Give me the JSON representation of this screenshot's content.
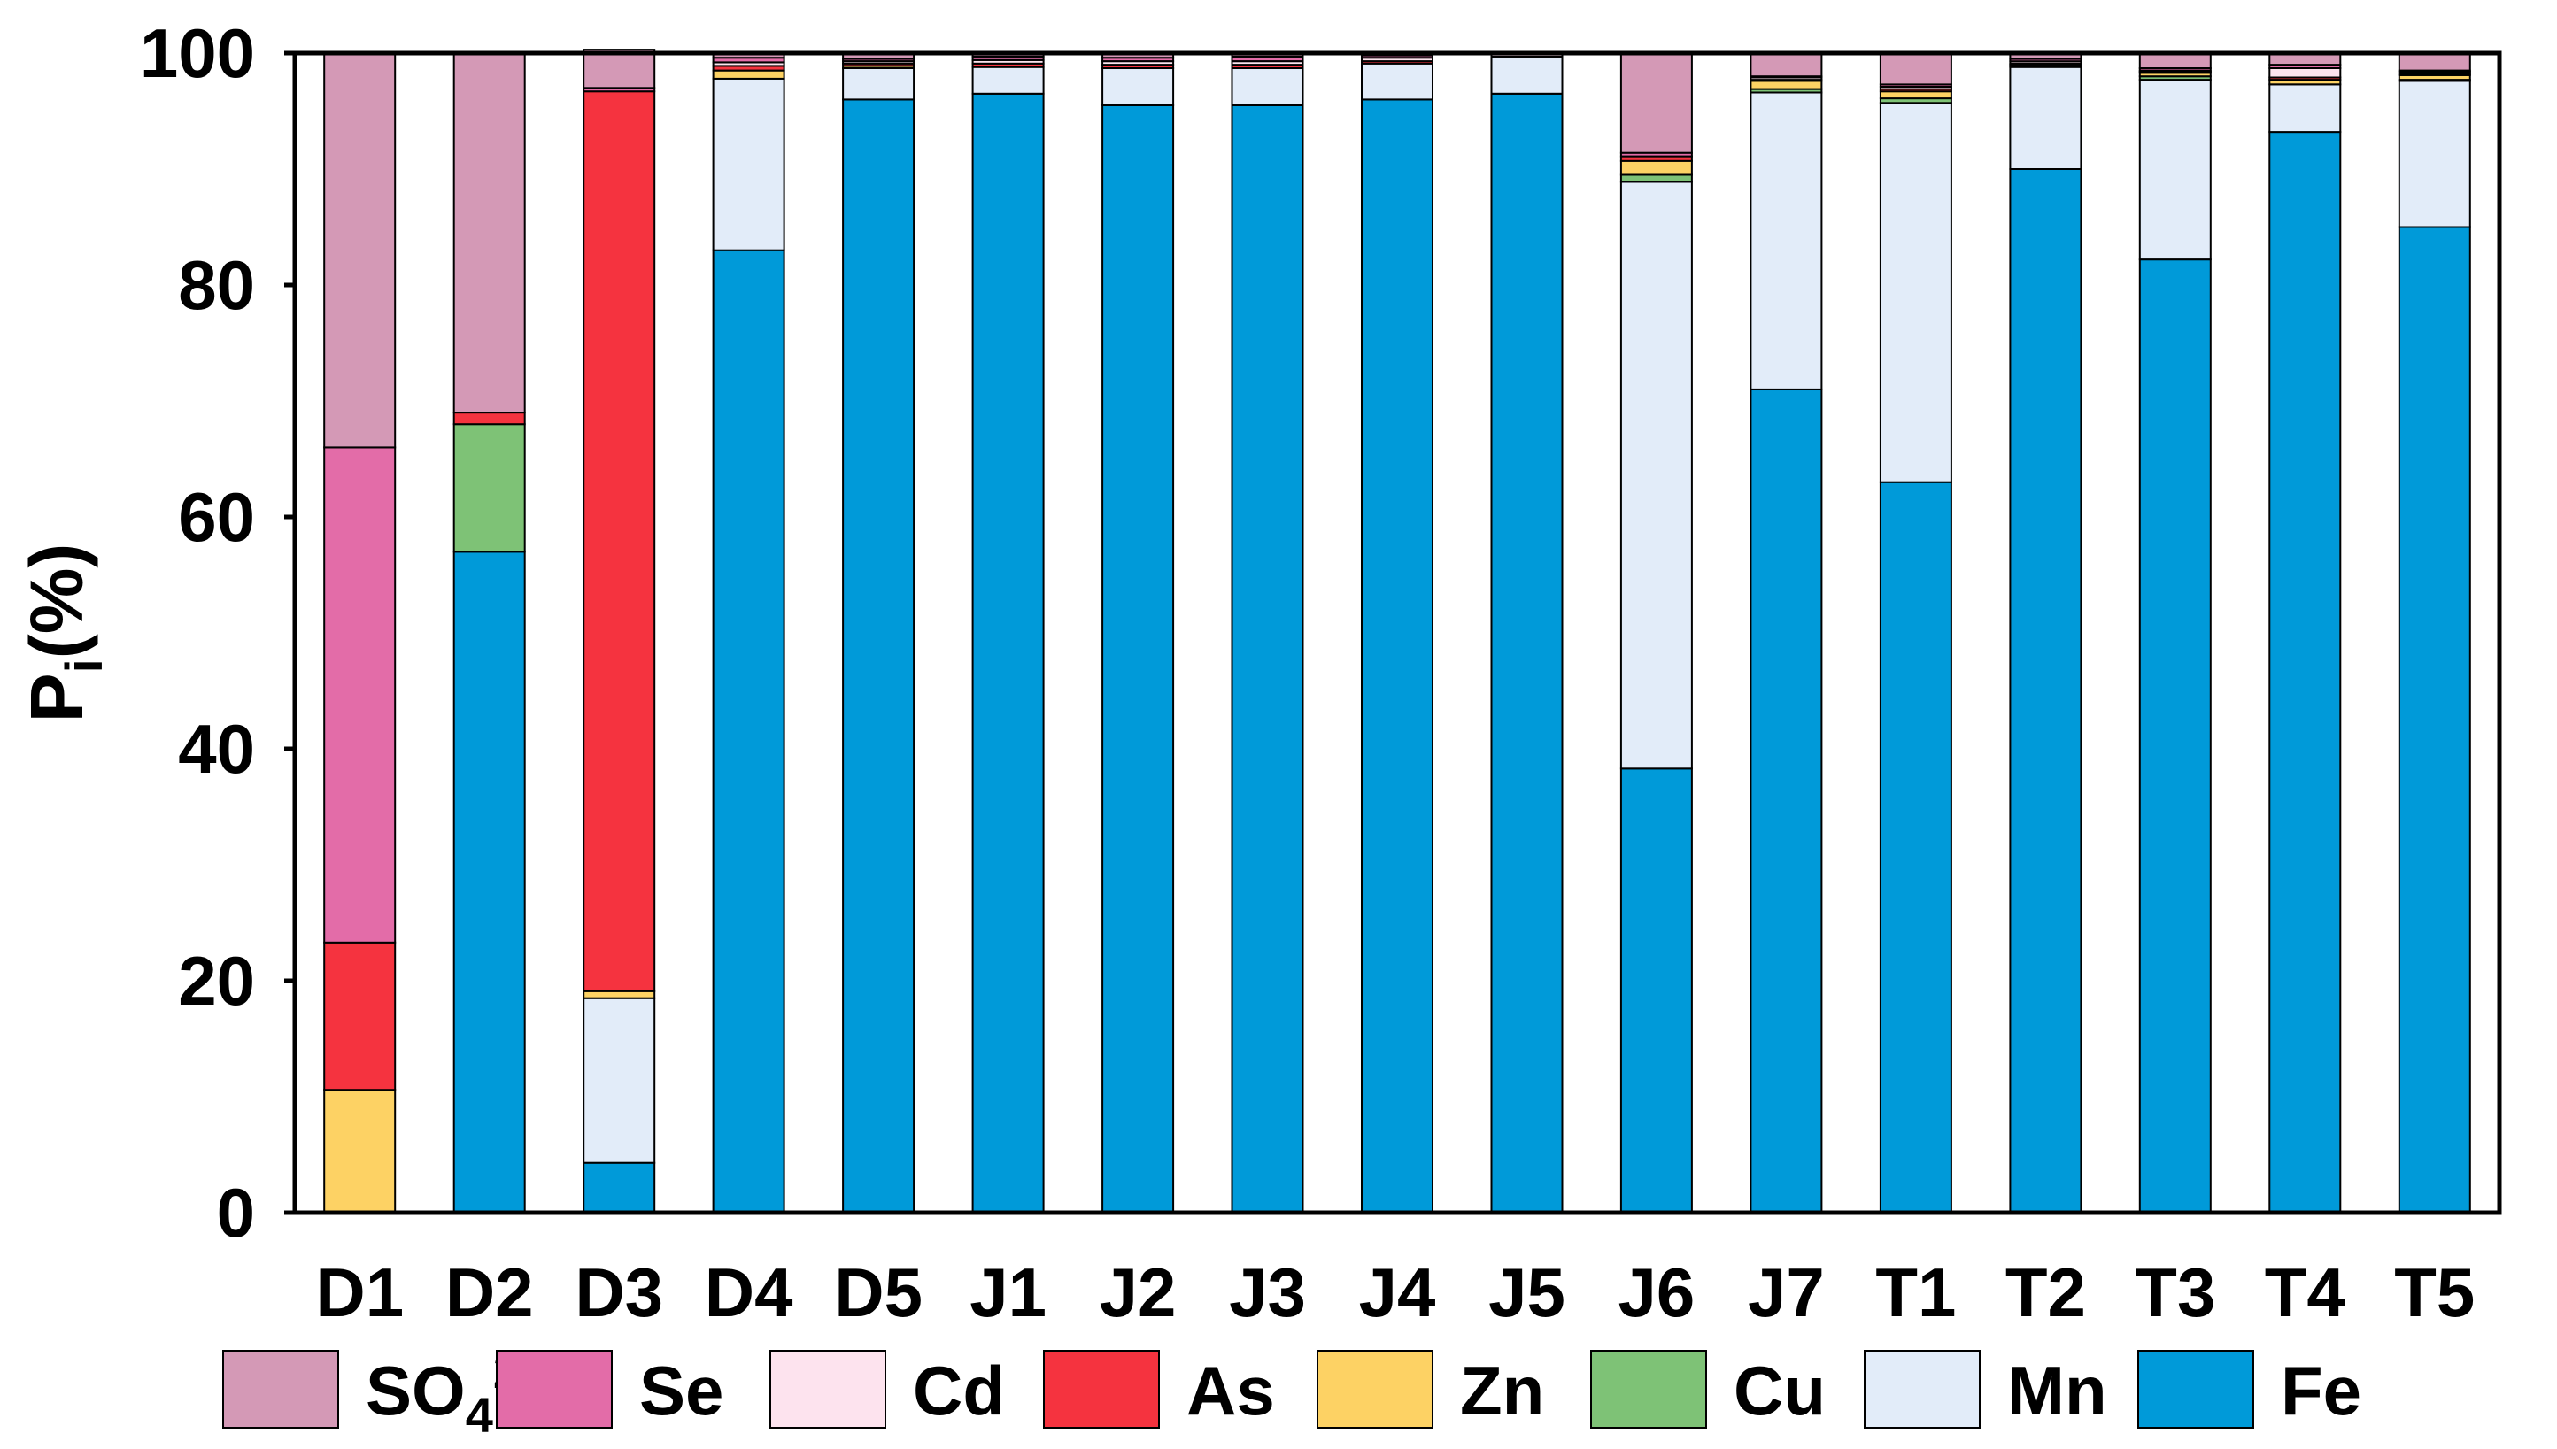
{
  "chart_data": {
    "type": "bar",
    "stacked": true,
    "categories": [
      "D1",
      "D2",
      "D3",
      "D4",
      "D5",
      "J1",
      "J2",
      "J3",
      "J4",
      "J5",
      "J6",
      "J7",
      "T1",
      "T2",
      "T3",
      "T4",
      "T5"
    ],
    "ylabel": "P",
    "ylabel_sub": "i",
    "ylabel_suffix": "(%)",
    "ylim": [
      0,
      100
    ],
    "yticks": [
      "0",
      "20",
      "40",
      "60",
      "80",
      "100"
    ],
    "grid": false,
    "legend_position": "bottom",
    "series": [
      {
        "name": "Fe",
        "color": "#009ad9",
        "values": [
          0,
          57,
          4.3,
          83,
          96,
          96.5,
          95.5,
          95.5,
          96,
          96.5,
          38.3,
          71,
          63,
          90,
          82.2,
          93.2,
          85
        ]
      },
      {
        "name": "Mn",
        "color": "#e2ecf9",
        "values": [
          0,
          0,
          14.2,
          14.8,
          2.7,
          2.3,
          3.2,
          3.2,
          3.1,
          3.2,
          50.6,
          25.6,
          32.7,
          8.8,
          15.5,
          4.1,
          12.6
        ]
      },
      {
        "name": "Cu",
        "color": "#7ec276",
        "values": [
          0,
          11,
          0,
          0,
          0,
          0,
          0,
          0,
          0,
          0,
          0.6,
          0.3,
          0.4,
          0.1,
          0.3,
          0,
          0.1
        ]
      },
      {
        "name": "Zn",
        "color": "#fdd264",
        "values": [
          10.6,
          0,
          0.6,
          0.7,
          0.2,
          0,
          0,
          0,
          0,
          0,
          1.2,
          0.7,
          0.6,
          0.1,
          0.3,
          0.4,
          0.4
        ]
      },
      {
        "name": "As",
        "color": "#f5333f",
        "values": [
          12.7,
          1,
          77.6,
          0.4,
          0.2,
          0.3,
          0.3,
          0.3,
          0.2,
          0,
          0.4,
          0.1,
          0.2,
          0.1,
          0.1,
          0.2,
          0.1
        ]
      },
      {
        "name": "Cd",
        "color": "#fde3ee",
        "values": [
          0,
          0,
          0,
          0.3,
          0.2,
          0.3,
          0.3,
          0.3,
          0.3,
          0.2,
          0,
          0.2,
          0.2,
          0.2,
          0.1,
          0.8,
          0.2
        ]
      },
      {
        "name": "Se",
        "color": "#e36ca8",
        "values": [
          42.7,
          0,
          0.3,
          0.4,
          0.2,
          0.3,
          0.3,
          0.4,
          0.2,
          0,
          0.3,
          0.1,
          0.2,
          0.2,
          0.2,
          0.3,
          0.1
        ]
      },
      {
        "name": "SO₄²⁻",
        "label_main": "SO",
        "label_sub": "4",
        "label_sup": "2—",
        "color": "#d499b6",
        "values": [
          34,
          31,
          3.3,
          0.4,
          0.5,
          0.3,
          0.4,
          0.3,
          0.2,
          0.1,
          8.6,
          2,
          2.7,
          0.5,
          1.3,
          1,
          1.5
        ]
      }
    ]
  }
}
